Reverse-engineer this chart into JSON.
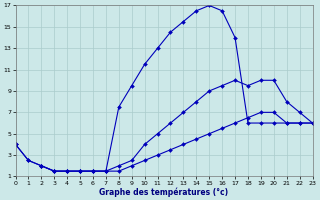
{
  "xlabel": "Graphe des températures (°c)",
  "bg": "#cce8e8",
  "grid_color": "#aacccc",
  "lc": "#0000bb",
  "xmin": 0,
  "xmax": 23,
  "ymin": 1,
  "ymax": 17,
  "xticks": [
    0,
    1,
    2,
    3,
    4,
    5,
    6,
    7,
    8,
    9,
    10,
    11,
    12,
    13,
    14,
    15,
    16,
    17,
    18,
    19,
    20,
    21,
    22,
    23
  ],
  "yticks": [
    1,
    3,
    5,
    7,
    9,
    11,
    13,
    15,
    17
  ],
  "line1": {
    "x": [
      0,
      1,
      2,
      3,
      4,
      5,
      6,
      7,
      8,
      9,
      10,
      11,
      12,
      13,
      14,
      15,
      16,
      17,
      18,
      19,
      20,
      21,
      22,
      23
    ],
    "y": [
      4,
      2.5,
      2,
      1.5,
      1.5,
      1.5,
      1.5,
      1.5,
      7.5,
      9.5,
      11.5,
      13,
      14.5,
      15.5,
      16.5,
      17,
      16.5,
      14,
      6,
      6,
      6,
      6,
      6,
      6
    ]
  },
  "line2": {
    "x": [
      0,
      1,
      2,
      3,
      4,
      5,
      6,
      7,
      8,
      9,
      10,
      11,
      12,
      13,
      14,
      15,
      16,
      17,
      18,
      19,
      20,
      21,
      22,
      23
    ],
    "y": [
      4,
      2.5,
      2,
      1.5,
      1.5,
      1.5,
      1.5,
      1.5,
      2,
      2.5,
      4,
      5,
      6,
      7,
      8,
      9,
      9.5,
      10,
      9.5,
      10,
      10,
      8,
      7,
      6
    ]
  },
  "line3": {
    "x": [
      2,
      3,
      4,
      5,
      6,
      7,
      8,
      9,
      10,
      11,
      12,
      13,
      14,
      15,
      16,
      17,
      18,
      19,
      20,
      21,
      22,
      23
    ],
    "y": [
      2,
      1.5,
      1.5,
      1.5,
      1.5,
      1.5,
      1.5,
      2,
      2.5,
      3,
      3.5,
      4,
      4.5,
      5,
      5.5,
      6,
      6.5,
      7,
      7,
      6,
      6,
      6
    ]
  }
}
